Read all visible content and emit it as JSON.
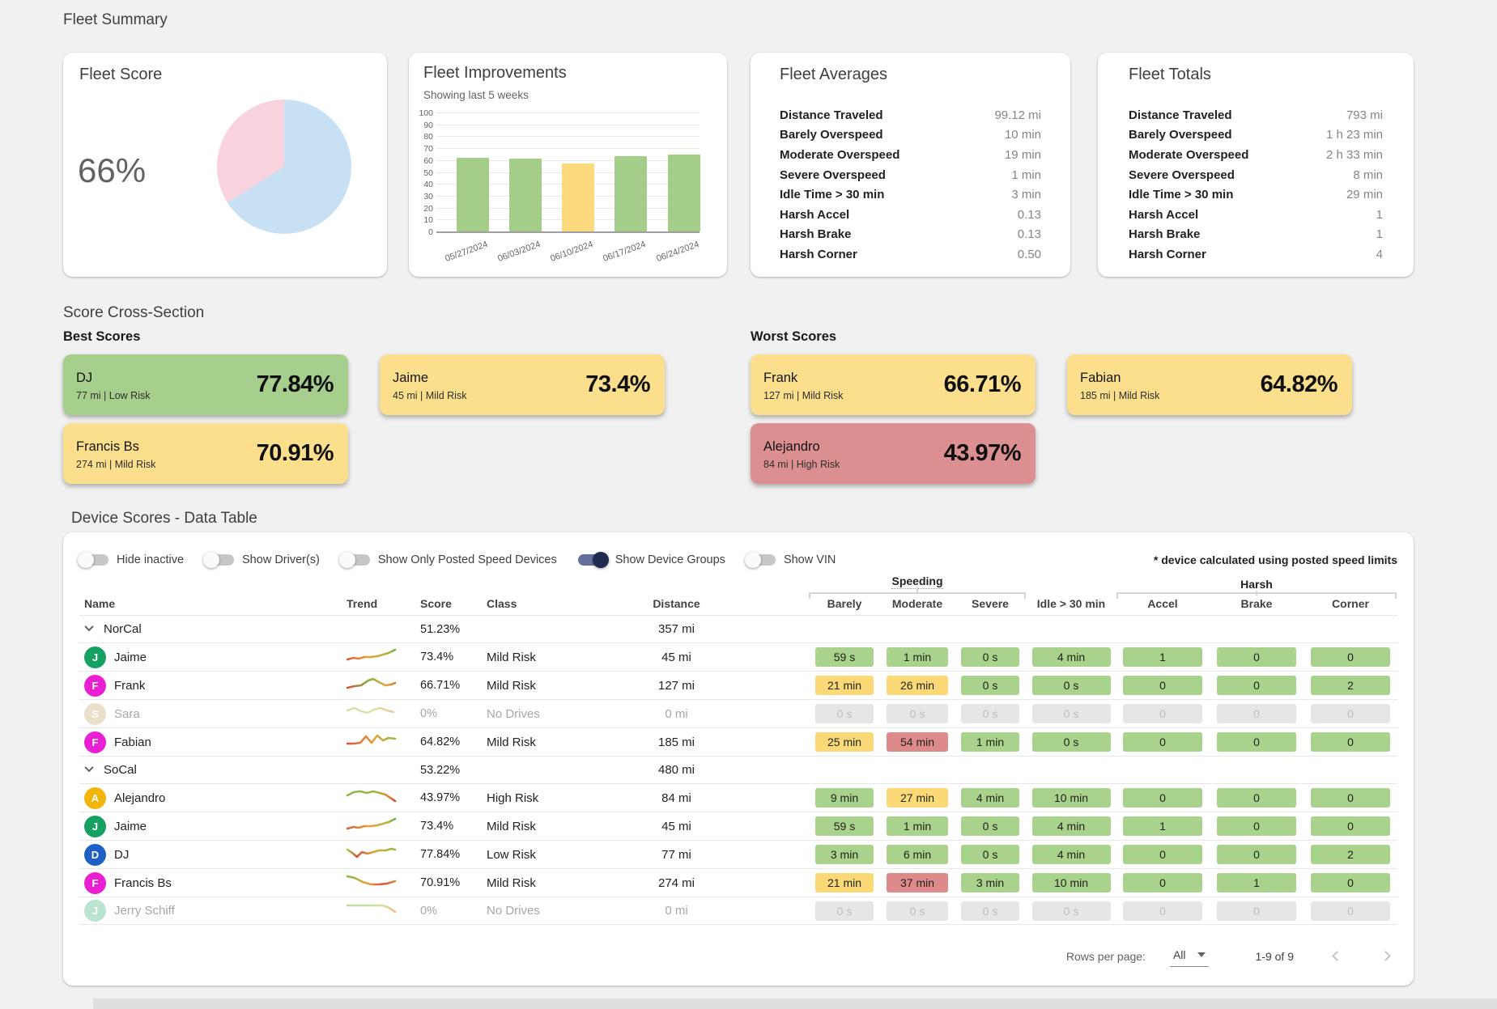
{
  "page": {
    "title": "Fleet Summary",
    "cross_section_title": "Score Cross-Section"
  },
  "fleet_score": {
    "title": "Fleet Score",
    "value": "66%"
  },
  "fleet_improvements": {
    "title": "Fleet Improvements",
    "subtitle": "Showing last 5 weeks"
  },
  "chart_data": [
    {
      "type": "pie",
      "title": "Fleet Score",
      "center_label": "66%",
      "slices": [
        {
          "label": "score",
          "value": 66,
          "color": "#c7e0f4"
        },
        {
          "label": "remainder",
          "value": 34,
          "color": "#f8d3de"
        }
      ]
    },
    {
      "type": "bar",
      "title": "Fleet Improvements",
      "subtitle": "Showing last 5 weeks",
      "categories": [
        "05/27/2024",
        "06/03/2024",
        "06/10/2024",
        "06/17/2024",
        "06/24/2024"
      ],
      "values": [
        62,
        61,
        57,
        63,
        65
      ],
      "bar_colors": [
        "#a5cd8a",
        "#a5cd8a",
        "#fbd97c",
        "#a5cd8a",
        "#a5cd8a"
      ],
      "ylim": [
        0,
        100
      ],
      "ytick_step": 10,
      "grid": true,
      "legend": "none"
    }
  ],
  "fleet_averages": {
    "title": "Fleet Averages",
    "rows": [
      {
        "label": "Distance Traveled",
        "value": "99.12 mi"
      },
      {
        "label": "Barely Overspeed",
        "value": "10 min"
      },
      {
        "label": "Moderate Overspeed",
        "value": "19 min"
      },
      {
        "label": "Severe Overspeed",
        "value": "1 min"
      },
      {
        "label": "Idle Time > 30 min",
        "value": "3 min"
      },
      {
        "label": "Harsh Accel",
        "value": "0.13"
      },
      {
        "label": "Harsh Brake",
        "value": "0.13"
      },
      {
        "label": "Harsh Corner",
        "value": "0.50"
      }
    ]
  },
  "fleet_totals": {
    "title": "Fleet Totals",
    "rows": [
      {
        "label": "Distance Traveled",
        "value": "793 mi"
      },
      {
        "label": "Barely Overspeed",
        "value": "1 h 23 min"
      },
      {
        "label": "Moderate Overspeed",
        "value": "2 h 33 min"
      },
      {
        "label": "Severe Overspeed",
        "value": "8 min"
      },
      {
        "label": "Idle Time > 30 min",
        "value": "29 min"
      },
      {
        "label": "Harsh Accel",
        "value": "1"
      },
      {
        "label": "Harsh Brake",
        "value": "1"
      },
      {
        "label": "Harsh Corner",
        "value": "4"
      }
    ]
  },
  "best_scores": {
    "title": "Best Scores",
    "cards": [
      {
        "name": "DJ",
        "sub": "77 mi | Low Risk",
        "score": "77.84%",
        "tone": "green"
      },
      {
        "name": "Jaime",
        "sub": "45 mi | Mild Risk",
        "score": "73.4%",
        "tone": "yellow"
      },
      {
        "name": "Francis Bs",
        "sub": "274 mi | Mild Risk",
        "score": "70.91%",
        "tone": "yellow"
      }
    ]
  },
  "worst_scores": {
    "title": "Worst Scores",
    "cards": [
      {
        "name": "Frank",
        "sub": "127 mi | Mild Risk",
        "score": "66.71%",
        "tone": "yellow"
      },
      {
        "name": "Fabian",
        "sub": "185 mi | Mild Risk",
        "score": "64.82%",
        "tone": "yellow"
      },
      {
        "name": "Alejandro",
        "sub": "84 mi | High Risk",
        "score": "43.97%",
        "tone": "red"
      }
    ]
  },
  "device_table": {
    "title": "Device Scores - Data Table",
    "toggles": [
      {
        "label": "Hide inactive",
        "on": false
      },
      {
        "label": "Show Driver(s)",
        "on": false
      },
      {
        "label": "Show Only Posted Speed Devices",
        "on": false
      },
      {
        "label": "Show Device Groups",
        "on": true
      },
      {
        "label": "Show VIN",
        "on": false
      }
    ],
    "note": "* device calculated using posted speed limits",
    "group_headers": {
      "speeding": "Speeding",
      "harsh": "Harsh"
    },
    "columns": {
      "name": "Name",
      "trend": "Trend",
      "score": "Score",
      "class": "Class",
      "distance": "Distance",
      "barely": "Barely",
      "moderate": "Moderate",
      "severe": "Severe",
      "idle": "Idle > 30 min",
      "accel": "Accel",
      "brake": "Brake",
      "corner": "Corner"
    },
    "rows": [
      {
        "type": "group",
        "name": "NorCal",
        "score": "51.23%",
        "distance": "357 mi"
      },
      {
        "type": "device",
        "name": "Jaime",
        "initial": "J",
        "avatar_color": "#16a062",
        "trend": "rise",
        "score": "73.4%",
        "risk": "Mild Risk",
        "distance": "45 mi",
        "inactive": false,
        "cells": [
          {
            "text": "59 s",
            "tone": "green"
          },
          {
            "text": "1 min",
            "tone": "green"
          },
          {
            "text": "0 s",
            "tone": "green"
          },
          {
            "text": "4 min",
            "tone": "green"
          },
          {
            "text": "1",
            "tone": "green"
          },
          {
            "text": "0",
            "tone": "green"
          },
          {
            "text": "0",
            "tone": "green"
          }
        ]
      },
      {
        "type": "device",
        "name": "Frank",
        "initial": "F",
        "avatar_color": "#ea1fd3",
        "trend": "peak",
        "score": "66.71%",
        "risk": "Mild Risk",
        "distance": "127 mi",
        "inactive": false,
        "cells": [
          {
            "text": "21 min",
            "tone": "yellow"
          },
          {
            "text": "26 min",
            "tone": "yellow"
          },
          {
            "text": "0 s",
            "tone": "green"
          },
          {
            "text": "0 s",
            "tone": "green"
          },
          {
            "text": "0",
            "tone": "green"
          },
          {
            "text": "0",
            "tone": "green"
          },
          {
            "text": "2",
            "tone": "green"
          }
        ]
      },
      {
        "type": "device",
        "name": "Sara",
        "initial": "S",
        "avatar_color": "#d9c69d",
        "trend": "fadedWave",
        "score": "0%",
        "risk": "No Drives",
        "distance": "0 mi",
        "inactive": true,
        "cells": [
          {
            "text": "0 s",
            "tone": "gray"
          },
          {
            "text": "0 s",
            "tone": "gray"
          },
          {
            "text": "0 s",
            "tone": "gray"
          },
          {
            "text": "0 s",
            "tone": "gray"
          },
          {
            "text": "0",
            "tone": "gray"
          },
          {
            "text": "0",
            "tone": "gray"
          },
          {
            "text": "0",
            "tone": "gray"
          }
        ]
      },
      {
        "type": "device",
        "name": "Fabian",
        "initial": "F",
        "avatar_color": "#ea1fd3",
        "trend": "zigzag",
        "score": "64.82%",
        "risk": "Mild Risk",
        "distance": "185 mi",
        "inactive": false,
        "cells": [
          {
            "text": "25 min",
            "tone": "yellow"
          },
          {
            "text": "54 min",
            "tone": "red"
          },
          {
            "text": "1 min",
            "tone": "green"
          },
          {
            "text": "0 s",
            "tone": "green"
          },
          {
            "text": "0",
            "tone": "green"
          },
          {
            "text": "0",
            "tone": "green"
          },
          {
            "text": "0",
            "tone": "green"
          }
        ]
      },
      {
        "type": "group",
        "name": "SoCal",
        "score": "53.22%",
        "distance": "480 mi"
      },
      {
        "type": "device",
        "name": "Alejandro",
        "initial": "A",
        "avatar_color": "#f2b50c",
        "trend": "humpFall",
        "score": "43.97%",
        "risk": "High Risk",
        "distance": "84 mi",
        "inactive": false,
        "cells": [
          {
            "text": "9 min",
            "tone": "green"
          },
          {
            "text": "27 min",
            "tone": "yellow"
          },
          {
            "text": "4 min",
            "tone": "green"
          },
          {
            "text": "10 min",
            "tone": "green"
          },
          {
            "text": "0",
            "tone": "green"
          },
          {
            "text": "0",
            "tone": "green"
          },
          {
            "text": "0",
            "tone": "green"
          }
        ]
      },
      {
        "type": "device",
        "name": "Jaime",
        "initial": "J",
        "avatar_color": "#16a062",
        "trend": "rise",
        "score": "73.4%",
        "risk": "Mild Risk",
        "distance": "45 mi",
        "inactive": false,
        "cells": [
          {
            "text": "59 s",
            "tone": "green"
          },
          {
            "text": "1 min",
            "tone": "green"
          },
          {
            "text": "0 s",
            "tone": "green"
          },
          {
            "text": "4 min",
            "tone": "green"
          },
          {
            "text": "1",
            "tone": "green"
          },
          {
            "text": "0",
            "tone": "green"
          },
          {
            "text": "0",
            "tone": "green"
          }
        ]
      },
      {
        "type": "device",
        "name": "DJ",
        "initial": "D",
        "avatar_color": "#1d5fc4",
        "trend": "dipRecover",
        "score": "77.84%",
        "risk": "Low Risk",
        "distance": "77 mi",
        "inactive": false,
        "cells": [
          {
            "text": "3 min",
            "tone": "green"
          },
          {
            "text": "6 min",
            "tone": "green"
          },
          {
            "text": "0 s",
            "tone": "green"
          },
          {
            "text": "4 min",
            "tone": "green"
          },
          {
            "text": "0",
            "tone": "green"
          },
          {
            "text": "0",
            "tone": "green"
          },
          {
            "text": "2",
            "tone": "green"
          }
        ]
      },
      {
        "type": "device",
        "name": "Francis Bs",
        "initial": "F",
        "avatar_color": "#ea1fd3",
        "trend": "decline",
        "score": "70.91%",
        "risk": "Mild Risk",
        "distance": "274 mi",
        "inactive": false,
        "cells": [
          {
            "text": "21 min",
            "tone": "yellow"
          },
          {
            "text": "37 min",
            "tone": "red"
          },
          {
            "text": "3 min",
            "tone": "green"
          },
          {
            "text": "10 min",
            "tone": "green"
          },
          {
            "text": "0",
            "tone": "green"
          },
          {
            "text": "1",
            "tone": "green"
          },
          {
            "text": "0",
            "tone": "green"
          }
        ]
      },
      {
        "type": "device",
        "name": "Jerry Schiff",
        "initial": "J",
        "avatar_color": "#82ceaa",
        "trend": "flatDrop",
        "score": "0%",
        "risk": "No Drives",
        "distance": "0 mi",
        "inactive": true,
        "cells": [
          {
            "text": "0 s",
            "tone": "gray"
          },
          {
            "text": "0 s",
            "tone": "gray"
          },
          {
            "text": "0 s",
            "tone": "gray"
          },
          {
            "text": "0 s",
            "tone": "gray"
          },
          {
            "text": "0",
            "tone": "gray"
          },
          {
            "text": "0",
            "tone": "gray"
          },
          {
            "text": "0",
            "tone": "gray"
          }
        ]
      }
    ],
    "footer": {
      "rows_per_page_label": "Rows per page:",
      "rows_per_page_value": "All",
      "range": "1-9 of 9"
    }
  },
  "colors": {
    "pill_green": "#a9d28c",
    "pill_yellow": "#fbd977",
    "pill_red": "#df8a8a",
    "pill_gray": "#e6e6e6",
    "card_green": "#a6cf8e",
    "card_yellow": "#fbdf8d",
    "card_red": "#dc8f90",
    "pie_blue": "#c7e0f4",
    "pie_pink": "#f8d3de",
    "toggle_on_knob": "#1f2c50",
    "toggle_on_track": "#66719b"
  }
}
